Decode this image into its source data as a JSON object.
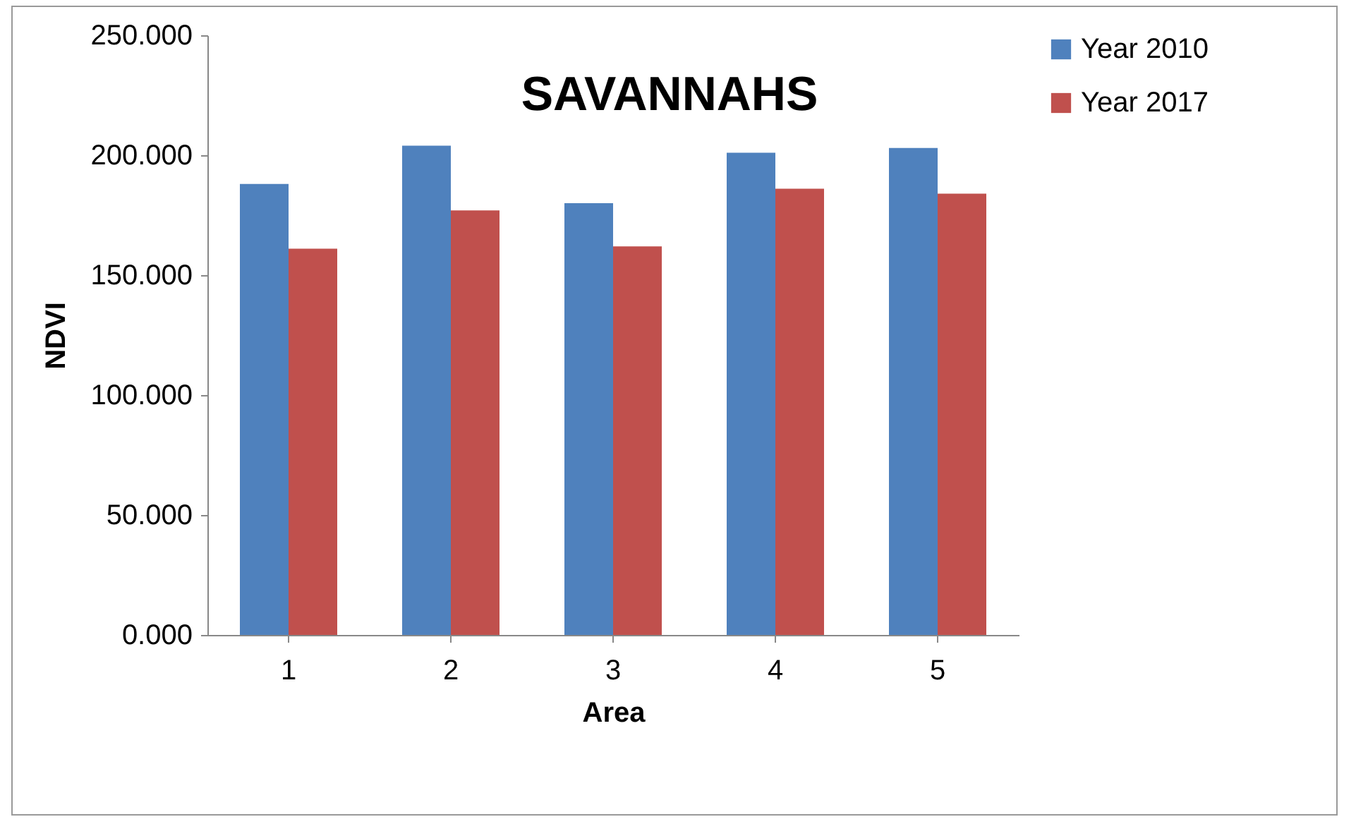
{
  "chart_data": {
    "type": "bar",
    "title": "SAVANNAHS",
    "xlabel": "Area",
    "ylabel": "NDVI",
    "categories": [
      "1",
      "2",
      "3",
      "4",
      "5"
    ],
    "series": [
      {
        "name": "Year 2010",
        "color": "#4f81bd",
        "values": [
          188,
          204,
          180,
          201,
          203
        ]
      },
      {
        "name": "Year 2017",
        "color": "#c0504d",
        "values": [
          161,
          177,
          162,
          186,
          184
        ]
      }
    ],
    "ylim": [
      0,
      250
    ],
    "yticks": [
      {
        "value": 0,
        "label": "0.000"
      },
      {
        "value": 50,
        "label": "50.000"
      },
      {
        "value": 100,
        "label": "100.000"
      },
      {
        "value": 150,
        "label": "150.000"
      },
      {
        "value": 200,
        "label": "200.000"
      },
      {
        "value": 250,
        "label": "250.000"
      }
    ],
    "grid": false,
    "legend": "right"
  }
}
